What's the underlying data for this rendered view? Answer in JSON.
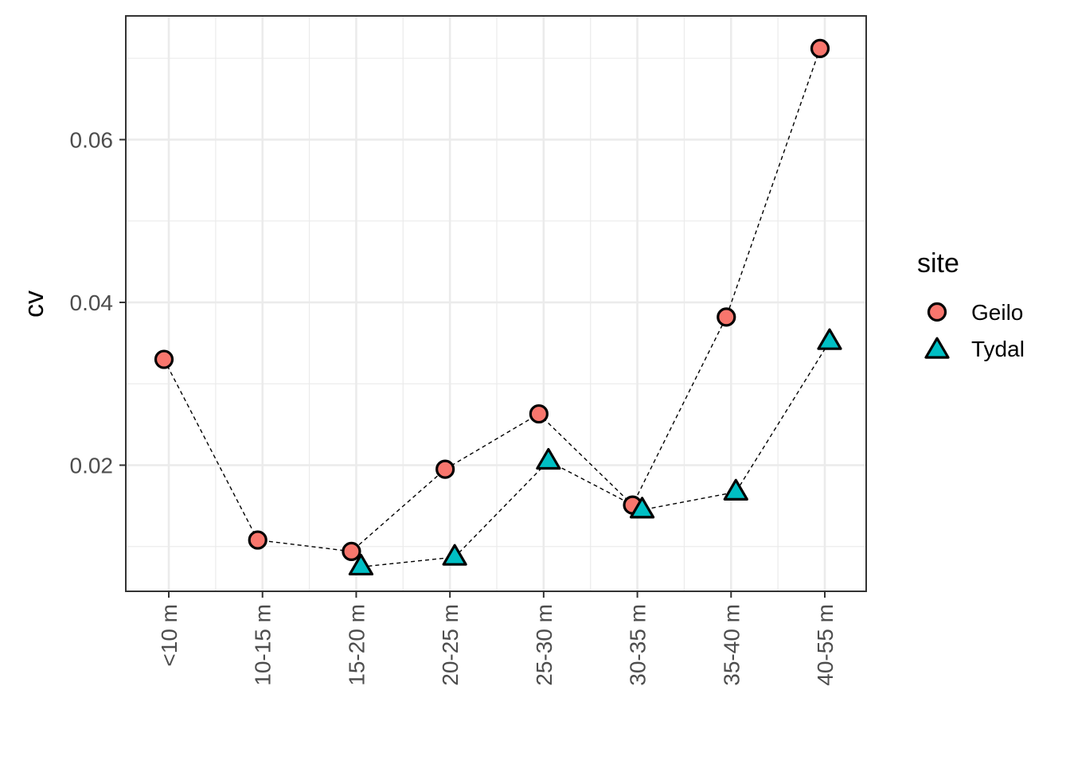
{
  "chart_data": {
    "type": "scatter",
    "title": "",
    "xlabel": "",
    "ylabel": "cv",
    "categories": [
      "<10 m",
      "10-15 m",
      "15-20 m",
      "20-25 m",
      "25-30 m",
      "30-35 m",
      "35-40 m",
      "40-55 m"
    ],
    "ylim": [
      0.0045,
      0.0752
    ],
    "yticks": [
      0.02,
      0.04,
      0.06
    ],
    "ytick_labels": [
      "0.02",
      "0.04",
      "0.06"
    ],
    "grid": true,
    "connect_lines": "dashed",
    "legend": {
      "title": "site",
      "position": "right"
    },
    "series": [
      {
        "name": "Geilo",
        "marker": "circle",
        "color": "#F8766D",
        "values": [
          0.033,
          0.0108,
          0.0094,
          0.0195,
          0.0263,
          0.0151,
          0.0382,
          0.0712
        ]
      },
      {
        "name": "Tydal",
        "marker": "triangle",
        "color": "#00BFC4",
        "values": [
          null,
          null,
          0.0075,
          0.0087,
          0.0205,
          0.0145,
          0.0167,
          0.0352
        ]
      }
    ]
  }
}
